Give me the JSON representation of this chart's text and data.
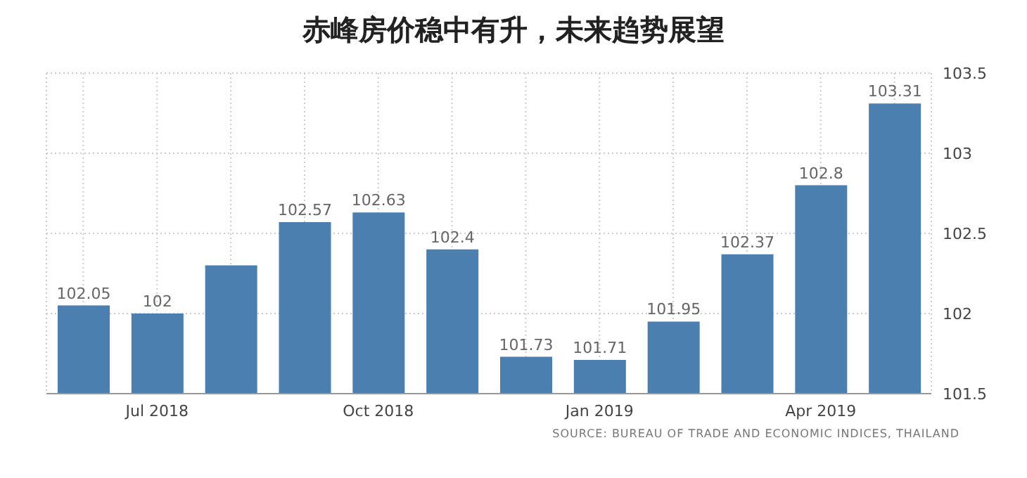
{
  "chart_data": {
    "type": "bar",
    "title": "赤峰房价稳中有升，未来趋势展望",
    "categories": [
      null,
      "Jul 2018",
      null,
      null,
      "Oct 2018",
      null,
      null,
      "Jan 2019",
      null,
      null,
      "Apr 2019",
      null
    ],
    "values": [
      102.05,
      102,
      102.3,
      102.57,
      102.63,
      102.4,
      101.73,
      101.71,
      101.95,
      102.37,
      102.8,
      103.31
    ],
    "value_labels": [
      "102.05",
      "102",
      null,
      "102.57",
      "102.63",
      "102.4",
      "101.73",
      "101.71",
      "101.95",
      "102.37",
      "102.8",
      "103.31"
    ],
    "color": "#4a7fb0",
    "ylim": [
      101.5,
      103.5
    ],
    "yticks": [
      101.5,
      102,
      102.5,
      103,
      103.5
    ],
    "grid": true,
    "annotations": [
      "SOURCE: BUREAU OF TRADE AND ECONOMIC INDICES, THAILAND"
    ]
  }
}
